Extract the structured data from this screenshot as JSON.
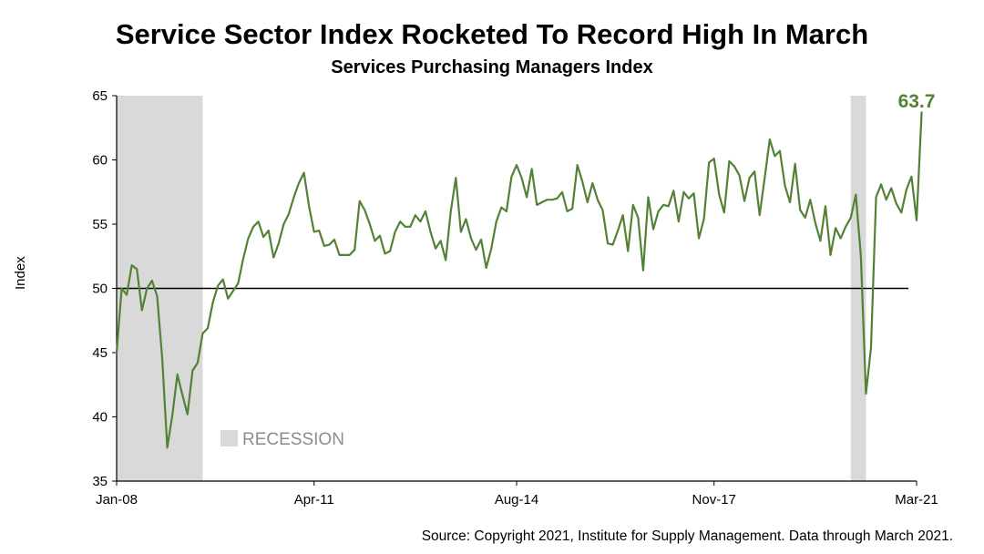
{
  "header": {
    "title": "Service Sector Index Rocketed To Record High In March",
    "subtitle": "Services Purchasing Managers Index"
  },
  "footer": {
    "source": "Source: Copyright 2021, Institute for Supply Management. Data through March 2021."
  },
  "colors": {
    "line": "#538135",
    "recession": "#d9d9d9",
    "reference": "#000000"
  },
  "chart_data": {
    "type": "line",
    "ylabel": "Index",
    "ylim": [
      35,
      65
    ],
    "yticks": [
      35,
      40,
      45,
      50,
      55,
      60,
      65
    ],
    "xlim": [
      "2008-01",
      "2021-03"
    ],
    "xticks": [
      {
        "label": "Jan-08",
        "date": "2008-01"
      },
      {
        "label": "Apr-11",
        "date": "2011-04"
      },
      {
        "label": "Aug-14",
        "date": "2014-08"
      },
      {
        "label": "Nov-17",
        "date": "2017-11"
      },
      {
        "label": "Mar-21",
        "date": "2021-03"
      }
    ],
    "reference_line": 50,
    "legend": {
      "label": "RECESSION",
      "placement": "bottom-left"
    },
    "recessions": [
      {
        "start": "2008-01",
        "end": "2009-06"
      },
      {
        "start": "2020-02",
        "end": "2020-05"
      }
    ],
    "annotation": {
      "text": "63.7",
      "date": "2021-03",
      "value": 63.7
    },
    "series": [
      {
        "start": "2008-01",
        "frequency": "monthly",
        "values": [
          45.0,
          50.0,
          49.5,
          51.8,
          51.5,
          48.3,
          50.0,
          50.6,
          49.4,
          44.6,
          37.6,
          40.1,
          43.3,
          41.7,
          40.2,
          43.6,
          44.2,
          46.5,
          46.9,
          48.9,
          50.2,
          50.7,
          49.2,
          49.8,
          50.4,
          52.3,
          53.9,
          54.8,
          55.2,
          54.0,
          54.5,
          52.4,
          53.5,
          55.0,
          55.8,
          57.1,
          58.2,
          59.0,
          56.4,
          54.4,
          54.5,
          53.3,
          53.4,
          53.8,
          52.6,
          52.6,
          52.6,
          53.0,
          56.8,
          56.1,
          55.0,
          53.7,
          54.1,
          52.7,
          52.9,
          54.4,
          55.2,
          54.8,
          54.8,
          55.7,
          55.2,
          56.0,
          54.4,
          53.1,
          53.7,
          52.2,
          56.0,
          58.6,
          54.4,
          55.4,
          53.9,
          53.0,
          53.8,
          51.6,
          53.1,
          55.2,
          56.3,
          56.0,
          58.7,
          59.6,
          58.6,
          57.1,
          59.3,
          56.5,
          56.7,
          56.9,
          56.9,
          57.0,
          57.5,
          56.0,
          56.2,
          59.6,
          58.3,
          56.7,
          58.2,
          56.9,
          56.1,
          53.5,
          53.4,
          54.5,
          55.7,
          52.9,
          56.5,
          55.5,
          51.4,
          57.1,
          54.6,
          56.0,
          56.5,
          56.4,
          57.6,
          55.2,
          57.5,
          57.0,
          57.4,
          53.9,
          55.4,
          59.8,
          60.1,
          57.3,
          55.9,
          59.9,
          59.5,
          58.8,
          56.8,
          58.6,
          59.1,
          55.7,
          58.6,
          61.6,
          60.3,
          60.7,
          58.0,
          56.7,
          59.7,
          56.1,
          55.5,
          56.9,
          55.1,
          53.7,
          56.4,
          52.6,
          54.7,
          53.9,
          54.8,
          55.5,
          57.3,
          52.5,
          41.8,
          45.4,
          57.1,
          58.1,
          56.9,
          57.8,
          56.6,
          55.9,
          57.7,
          58.7,
          55.3,
          63.7
        ]
      }
    ]
  }
}
